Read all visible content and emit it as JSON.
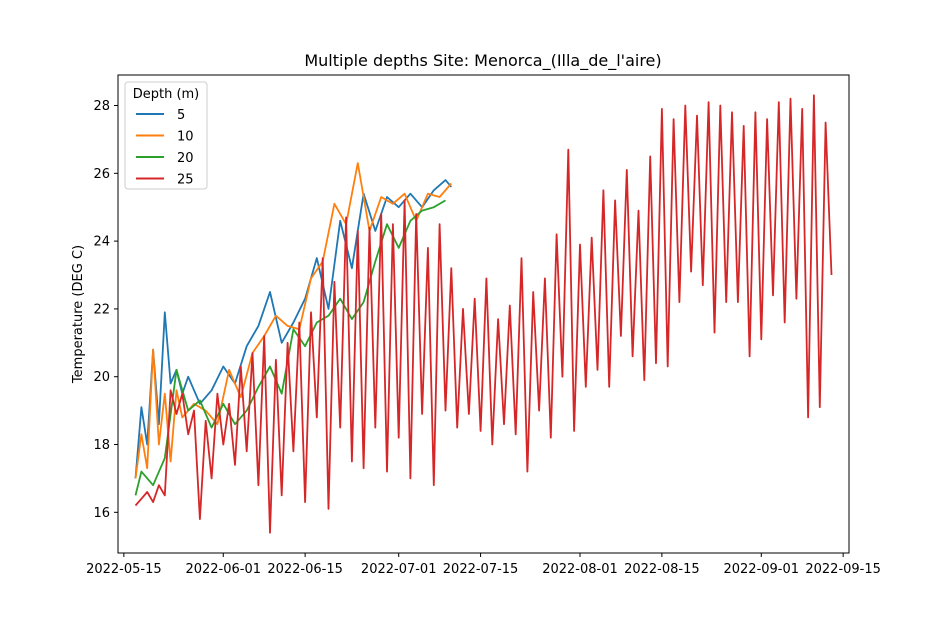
{
  "chart_data": {
    "type": "line",
    "title": "Multiple depths Site: Menorca_(Illa_de_l'aire)",
    "xlabel": "",
    "ylabel": "Temperature (DEG C)",
    "x_axis_type": "date",
    "xlim": [
      "2022-05-14",
      "2022-09-16"
    ],
    "ylim": [
      14.8,
      28.9
    ],
    "xticks": [
      "2022-05-15",
      "2022-06-01",
      "2022-06-15",
      "2022-07-01",
      "2022-07-15",
      "2022-08-01",
      "2022-08-15",
      "2022-09-01",
      "2022-09-15"
    ],
    "yticks": [
      16,
      18,
      20,
      22,
      24,
      26,
      28
    ],
    "grid": false,
    "legend": {
      "title": "Depth (m)",
      "placement": "top-left"
    },
    "series": [
      {
        "name": "5",
        "color": "#1f77b4",
        "x": [
          "2022-05-17",
          "2022-05-18",
          "2022-05-19",
          "2022-05-20",
          "2022-05-21",
          "2022-05-22",
          "2022-05-23",
          "2022-05-24",
          "2022-05-25",
          "2022-05-26",
          "2022-05-28",
          "2022-05-30",
          "2022-06-01",
          "2022-06-03",
          "2022-06-05",
          "2022-06-07",
          "2022-06-09",
          "2022-06-11",
          "2022-06-13",
          "2022-06-15",
          "2022-06-17",
          "2022-06-19",
          "2022-06-21",
          "2022-06-23",
          "2022-06-25",
          "2022-06-27",
          "2022-06-29",
          "2022-07-01",
          "2022-07-03",
          "2022-07-05",
          "2022-07-07",
          "2022-07-09",
          "2022-07-10"
        ],
        "y": [
          17.0,
          19.1,
          18.0,
          20.8,
          18.6,
          21.9,
          19.8,
          20.2,
          19.5,
          20.0,
          19.2,
          19.6,
          20.3,
          19.8,
          20.9,
          21.5,
          22.5,
          21.0,
          21.6,
          22.3,
          23.5,
          22.0,
          24.6,
          23.2,
          25.4,
          24.3,
          25.3,
          25.0,
          25.4,
          25.0,
          25.5,
          25.8,
          25.6
        ]
      },
      {
        "name": "10",
        "color": "#ff7f0e",
        "x": [
          "2022-05-17",
          "2022-05-18",
          "2022-05-19",
          "2022-05-20",
          "2022-05-21",
          "2022-05-22",
          "2022-05-23",
          "2022-05-24",
          "2022-05-25",
          "2022-05-27",
          "2022-05-29",
          "2022-05-31",
          "2022-06-02",
          "2022-06-04",
          "2022-06-06",
          "2022-06-08",
          "2022-06-10",
          "2022-06-12",
          "2022-06-14",
          "2022-06-16",
          "2022-06-18",
          "2022-06-20",
          "2022-06-22",
          "2022-06-24",
          "2022-06-26",
          "2022-06-28",
          "2022-06-30",
          "2022-07-02",
          "2022-07-04",
          "2022-07-06",
          "2022-07-08",
          "2022-07-10"
        ],
        "y": [
          17.0,
          18.3,
          17.3,
          20.8,
          18.0,
          19.5,
          17.5,
          19.6,
          18.8,
          19.2,
          19.0,
          18.6,
          20.2,
          19.4,
          20.7,
          21.2,
          21.8,
          21.5,
          21.4,
          22.9,
          23.4,
          25.1,
          24.5,
          26.3,
          24.3,
          25.3,
          25.1,
          25.4,
          24.6,
          25.4,
          25.3,
          25.7
        ]
      },
      {
        "name": "20",
        "color": "#2ca02c",
        "x": [
          "2022-05-17",
          "2022-05-18",
          "2022-05-20",
          "2022-05-22",
          "2022-05-24",
          "2022-05-26",
          "2022-05-28",
          "2022-05-30",
          "2022-06-01",
          "2022-06-03",
          "2022-06-05",
          "2022-06-07",
          "2022-06-09",
          "2022-06-11",
          "2022-06-13",
          "2022-06-15",
          "2022-06-17",
          "2022-06-19",
          "2022-06-21",
          "2022-06-23",
          "2022-06-25",
          "2022-06-27",
          "2022-06-29",
          "2022-07-01",
          "2022-07-03",
          "2022-07-05",
          "2022-07-07",
          "2022-07-09"
        ],
        "y": [
          16.5,
          17.2,
          16.8,
          17.6,
          20.2,
          19.0,
          19.3,
          18.5,
          19.2,
          18.6,
          19.0,
          19.7,
          20.3,
          19.5,
          21.4,
          20.9,
          21.6,
          21.8,
          22.3,
          21.7,
          22.2,
          23.4,
          24.5,
          23.8,
          24.6,
          24.9,
          25.0,
          25.2
        ]
      },
      {
        "name": "25",
        "color": "#d62728",
        "x": [
          "2022-05-17",
          "2022-05-18",
          "2022-05-19",
          "2022-05-20",
          "2022-05-21",
          "2022-05-22",
          "2022-05-23",
          "2022-05-24",
          "2022-05-25",
          "2022-05-26",
          "2022-05-27",
          "2022-05-28",
          "2022-05-29",
          "2022-05-30",
          "2022-05-31",
          "2022-06-01",
          "2022-06-02",
          "2022-06-03",
          "2022-06-04",
          "2022-06-05",
          "2022-06-06",
          "2022-06-07",
          "2022-06-08",
          "2022-06-09",
          "2022-06-10",
          "2022-06-11",
          "2022-06-12",
          "2022-06-13",
          "2022-06-14",
          "2022-06-15",
          "2022-06-16",
          "2022-06-17",
          "2022-06-18",
          "2022-06-19",
          "2022-06-20",
          "2022-06-21",
          "2022-06-22",
          "2022-06-23",
          "2022-06-24",
          "2022-06-25",
          "2022-06-26",
          "2022-06-27",
          "2022-06-28",
          "2022-06-29",
          "2022-06-30",
          "2022-07-01",
          "2022-07-02",
          "2022-07-03",
          "2022-07-04",
          "2022-07-05",
          "2022-07-06",
          "2022-07-07",
          "2022-07-08",
          "2022-07-09",
          "2022-07-10",
          "2022-07-11",
          "2022-07-12",
          "2022-07-13",
          "2022-07-14",
          "2022-07-15",
          "2022-07-16",
          "2022-07-17",
          "2022-07-18",
          "2022-07-19",
          "2022-07-20",
          "2022-07-21",
          "2022-07-22",
          "2022-07-23",
          "2022-07-24",
          "2022-07-25",
          "2022-07-26",
          "2022-07-27",
          "2022-07-28",
          "2022-07-29",
          "2022-07-30",
          "2022-07-31",
          "2022-08-01",
          "2022-08-02",
          "2022-08-03",
          "2022-08-04",
          "2022-08-05",
          "2022-08-06",
          "2022-08-07",
          "2022-08-08",
          "2022-08-09",
          "2022-08-10",
          "2022-08-11",
          "2022-08-12",
          "2022-08-13",
          "2022-08-14",
          "2022-08-15",
          "2022-08-16",
          "2022-08-17",
          "2022-08-18",
          "2022-08-19",
          "2022-08-20",
          "2022-08-21",
          "2022-08-22",
          "2022-08-23",
          "2022-08-24",
          "2022-08-25",
          "2022-08-26",
          "2022-08-27",
          "2022-08-28",
          "2022-08-29",
          "2022-08-30",
          "2022-08-31",
          "2022-09-01",
          "2022-09-02",
          "2022-09-03",
          "2022-09-04",
          "2022-09-05",
          "2022-09-06",
          "2022-09-07",
          "2022-09-08",
          "2022-09-09",
          "2022-09-10",
          "2022-09-11",
          "2022-09-12",
          "2022-09-13"
        ],
        "y": [
          16.2,
          16.4,
          16.6,
          16.3,
          16.8,
          16.5,
          19.6,
          18.9,
          19.5,
          18.3,
          19.0,
          15.8,
          18.7,
          17.0,
          19.5,
          18.0,
          19.2,
          17.4,
          20.3,
          17.8,
          20.7,
          16.8,
          21.2,
          15.4,
          20.5,
          16.5,
          21.0,
          17.8,
          21.6,
          16.3,
          21.9,
          18.8,
          23.5,
          16.1,
          22.8,
          18.5,
          24.7,
          17.5,
          24.3,
          17.3,
          24.4,
          18.5,
          24.8,
          17.2,
          24.5,
          18.2,
          25.2,
          17.0,
          24.8,
          18.9,
          23.8,
          16.8,
          24.5,
          19.0,
          23.2,
          18.5,
          22.0,
          18.9,
          22.3,
          18.4,
          22.9,
          18.0,
          21.7,
          18.6,
          22.1,
          18.3,
          23.5,
          17.2,
          22.5,
          19.0,
          22.9,
          18.2,
          24.2,
          20.0,
          26.7,
          18.4,
          23.9,
          19.7,
          24.1,
          20.2,
          25.5,
          19.7,
          25.2,
          21.2,
          26.1,
          20.6,
          24.9,
          19.9,
          26.5,
          20.4,
          27.9,
          20.3,
          27.6,
          22.2,
          28.0,
          23.1,
          27.7,
          22.7,
          28.1,
          21.3,
          28.0,
          22.2,
          27.8,
          22.2,
          27.4,
          20.6,
          27.8,
          21.1,
          27.6,
          22.4,
          28.1,
          21.6,
          28.2,
          22.3,
          27.9,
          18.8,
          28.3,
          19.1,
          27.5,
          23.0
        ]
      }
    ]
  }
}
